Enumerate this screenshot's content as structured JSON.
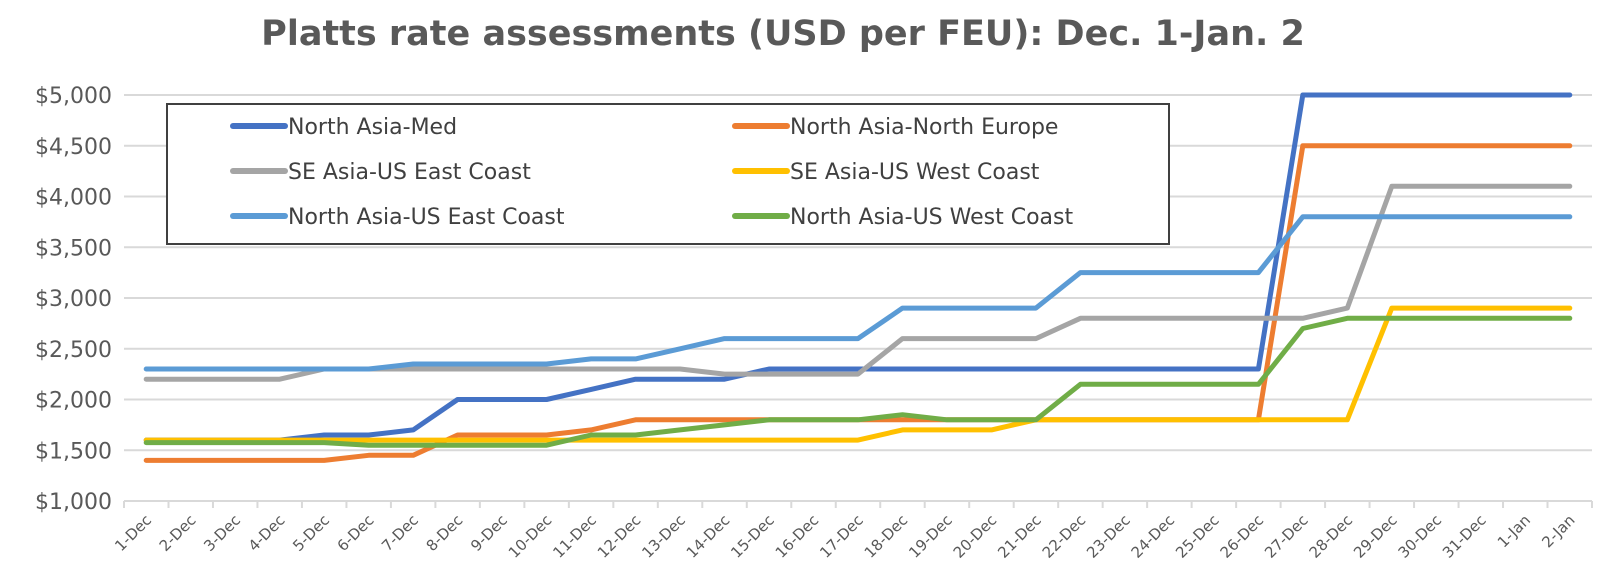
{
  "chart_data": {
    "type": "line",
    "title": "Platts rate assessments (USD per FEU): Dec. 1-Jan. 2",
    "xlabel": "",
    "ylabel": "",
    "ylim": [
      1000,
      5000
    ],
    "y_ticks": [
      "$1,000",
      "$1,500",
      "$2,000",
      "$2,500",
      "$3,000",
      "$3,500",
      "$4,000",
      "$4,500",
      "$5,000"
    ],
    "y_tick_values": [
      1000,
      1500,
      2000,
      2500,
      3000,
      3500,
      4000,
      4500,
      5000
    ],
    "grid": true,
    "legend_position": "inside-top-left",
    "categories": [
      "1-Dec",
      "2-Dec",
      "3-Dec",
      "4-Dec",
      "5-Dec",
      "6-Dec",
      "7-Dec",
      "8-Dec",
      "9-Dec",
      "10-Dec",
      "11-Dec",
      "12-Dec",
      "13-Dec",
      "14-Dec",
      "15-Dec",
      "16-Dec",
      "17-Dec",
      "18-Dec",
      "19-Dec",
      "20-Dec",
      "21-Dec",
      "22-Dec",
      "23-Dec",
      "24-Dec",
      "25-Dec",
      "26-Dec",
      "27-Dec",
      "28-Dec",
      "29-Dec",
      "30-Dec",
      "31-Dec",
      "1-Jan",
      "2-Jan"
    ],
    "series": [
      {
        "name": "North Asia-Med",
        "color": "#4472C4",
        "values": [
          1600,
          1600,
          1600,
          1600,
          1650,
          1650,
          1700,
          2000,
          2000,
          2000,
          2100,
          2200,
          2200,
          2200,
          2300,
          2300,
          2300,
          2300,
          2300,
          2300,
          2300,
          2300,
          2300,
          2300,
          2300,
          2300,
          5000,
          5000,
          5000,
          5000,
          5000,
          5000,
          5000
        ]
      },
      {
        "name": "North Asia-North Europe",
        "color": "#ED7D31",
        "values": [
          1400,
          1400,
          1400,
          1400,
          1400,
          1450,
          1450,
          1650,
          1650,
          1650,
          1700,
          1800,
          1800,
          1800,
          1800,
          1800,
          1800,
          1800,
          1800,
          1800,
          1800,
          1800,
          1800,
          1800,
          1800,
          1800,
          4500,
          4500,
          4500,
          4500,
          4500,
          4500,
          4500
        ]
      },
      {
        "name": "SE Asia-US East Coast",
        "color": "#A5A5A5",
        "values": [
          2200,
          2200,
          2200,
          2200,
          2300,
          2300,
          2300,
          2300,
          2300,
          2300,
          2300,
          2300,
          2300,
          2250,
          2250,
          2250,
          2250,
          2600,
          2600,
          2600,
          2600,
          2800,
          2800,
          2800,
          2800,
          2800,
          2800,
          2900,
          4100,
          4100,
          4100,
          4100,
          4100
        ]
      },
      {
        "name": "SE Asia-US West Coast",
        "color": "#FFC000",
        "values": [
          1600,
          1600,
          1600,
          1600,
          1600,
          1600,
          1600,
          1600,
          1600,
          1600,
          1600,
          1600,
          1600,
          1600,
          1600,
          1600,
          1600,
          1700,
          1700,
          1700,
          1800,
          1800,
          1800,
          1800,
          1800,
          1800,
          1800,
          1800,
          2900,
          2900,
          2900,
          2900,
          2900
        ]
      },
      {
        "name": "North Asia-US East Coast",
        "color": "#5B9BD5",
        "values": [
          2300,
          2300,
          2300,
          2300,
          2300,
          2300,
          2350,
          2350,
          2350,
          2350,
          2400,
          2400,
          2500,
          2600,
          2600,
          2600,
          2600,
          2900,
          2900,
          2900,
          2900,
          3250,
          3250,
          3250,
          3250,
          3250,
          3800,
          3800,
          3800,
          3800,
          3800,
          3800,
          3800
        ]
      },
      {
        "name": "North Asia-US West Coast",
        "color": "#70AD47",
        "values": [
          1575,
          1575,
          1575,
          1575,
          1575,
          1550,
          1550,
          1550,
          1550,
          1550,
          1650,
          1650,
          1700,
          1750,
          1800,
          1800,
          1800,
          1850,
          1800,
          1800,
          1800,
          2150,
          2150,
          2150,
          2150,
          2150,
          2700,
          2800,
          2800,
          2800,
          2800,
          2800,
          2800
        ]
      }
    ]
  },
  "legend": {
    "items": [
      {
        "label": "North Asia-Med",
        "color": "#4472C4"
      },
      {
        "label": "North Asia-North Europe",
        "color": "#ED7D31"
      },
      {
        "label": "SE Asia-US East Coast",
        "color": "#A5A5A5"
      },
      {
        "label": "SE Asia-US West Coast",
        "color": "#FFC000"
      },
      {
        "label": "North Asia-US East Coast",
        "color": "#5B9BD5"
      },
      {
        "label": "North Asia-US West Coast",
        "color": "#70AD47"
      }
    ]
  },
  "colors": {
    "gridline": "#D9D9D9",
    "axis": "#D9D9D9",
    "text": "#595959",
    "legend_border": "#404040"
  }
}
